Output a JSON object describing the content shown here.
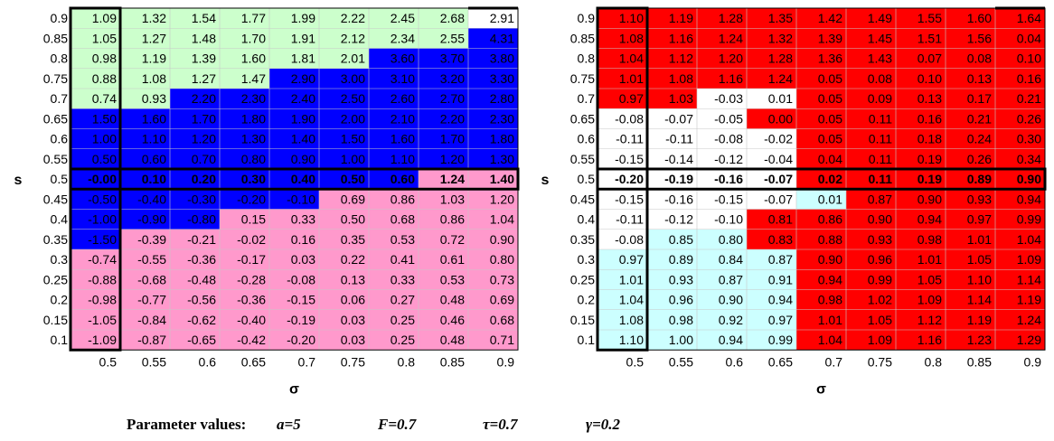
{
  "chart_data": [
    {
      "type": "heatmap",
      "xlabel": "σ",
      "ylabel": "s",
      "x_ticks": [
        "0.5",
        "0.55",
        "0.6",
        "0.65",
        "0.7",
        "0.75",
        "0.8",
        "0.85",
        "0.9"
      ],
      "y_ticks": [
        "0.9",
        "0.85",
        "0.8",
        "0.75",
        "0.7",
        "0.65",
        "0.6",
        "0.55",
        "0.5",
        "0.45",
        "0.4",
        "0.35",
        "0.3",
        "0.25",
        "0.2",
        "0.15",
        "0.1"
      ],
      "palette": {
        "g": "#ccffcc",
        "b": "#0000ff",
        "p": "#ff99cc"
      },
      "text_colors": {
        "g": "#000000",
        "b": "#000000",
        "p": "#000000"
      },
      "bold_row_index": 8,
      "values": [
        [
          "1.09",
          "1.32",
          "1.54",
          "1.77",
          "1.99",
          "2.22",
          "2.45",
          "2.68",
          "2.91"
        ],
        [
          "1.05",
          "1.27",
          "1.48",
          "1.70",
          "1.91",
          "2.12",
          "2.34",
          "2.55",
          "4.31"
        ],
        [
          "0.98",
          "1.19",
          "1.39",
          "1.60",
          "1.81",
          "2.01",
          "3.60",
          "3.70",
          "3.80"
        ],
        [
          "0.88",
          "1.08",
          "1.27",
          "1.47",
          "2.90",
          "3.00",
          "3.10",
          "3.20",
          "3.30"
        ],
        [
          "0.74",
          "0.93",
          "2.20",
          "2.30",
          "2.40",
          "2.50",
          "2.60",
          "2.70",
          "2.80"
        ],
        [
          "1.50",
          "1.60",
          "1.70",
          "1.80",
          "1.90",
          "2.00",
          "2.10",
          "2.20",
          "2.30"
        ],
        [
          "1.00",
          "1.10",
          "1.20",
          "1.30",
          "1.40",
          "1.50",
          "1.60",
          "1.70",
          "1.80"
        ],
        [
          "0.50",
          "0.60",
          "0.70",
          "0.80",
          "0.90",
          "1.00",
          "1.10",
          "1.20",
          "1.30"
        ],
        [
          "-0.00",
          "0.10",
          "0.20",
          "0.30",
          "0.40",
          "0.50",
          "0.60",
          "1.24",
          "1.40"
        ],
        [
          "-0.50",
          "-0.40",
          "-0.30",
          "-0.20",
          "-0.10",
          "0.69",
          "0.86",
          "1.03",
          "1.20"
        ],
        [
          "-1.00",
          "-0.90",
          "-0.80",
          "0.15",
          "0.33",
          "0.50",
          "0.68",
          "0.86",
          "1.04"
        ],
        [
          "-1.50",
          "-0.39",
          "-0.21",
          "-0.02",
          "0.16",
          "0.35",
          "0.53",
          "0.72",
          "0.90"
        ],
        [
          "-0.74",
          "-0.55",
          "-0.36",
          "-0.17",
          "0.03",
          "0.22",
          "0.41",
          "0.61",
          "0.80"
        ],
        [
          "-0.88",
          "-0.68",
          "-0.48",
          "-0.28",
          "-0.08",
          "0.13",
          "0.33",
          "0.53",
          "0.73"
        ],
        [
          "-0.98",
          "-0.77",
          "-0.56",
          "-0.36",
          "-0.15",
          "0.06",
          "0.27",
          "0.48",
          "0.69"
        ],
        [
          "-1.05",
          "-0.84",
          "-0.62",
          "-0.40",
          "-0.19",
          "0.03",
          "0.25",
          "0.46",
          "0.68"
        ],
        [
          "-1.09",
          "-0.87",
          "-0.65",
          "-0.42",
          "-0.20",
          "0.03",
          "0.25",
          "0.48",
          "0.71"
        ]
      ],
      "colors": [
        "gggggggg.",
        "ggggggggb",
        "ggggggbbb",
        "ggggbbbbb",
        "ggbbbbbbb",
        "bbbbbbbbb",
        "bbbbbbbbb",
        "bbbbbbbbb",
        "bbbbbbbpp",
        "bbbbbpppp",
        "bbbpppppp",
        "bpppppppp",
        "ppppppppp",
        "ppppppppp",
        "ppppppppp",
        "ppppppppp",
        "ppppppppp"
      ]
    },
    {
      "type": "heatmap",
      "xlabel": "σ",
      "ylabel": "s",
      "x_ticks": [
        "0.5",
        "0.55",
        "0.6",
        "0.65",
        "0.7",
        "0.75",
        "0.8",
        "0.85",
        "0.9"
      ],
      "y_ticks": [
        "0.9",
        "0.85",
        "0.8",
        "0.75",
        "0.7",
        "0.65",
        "0.6",
        "0.55",
        "0.5",
        "0.45",
        "0.4",
        "0.35",
        "0.3",
        "0.25",
        "0.2",
        "0.15",
        "0.1"
      ],
      "palette": {
        "r": "#ff0000",
        "w": "#ffffff",
        "c": "#ccffff"
      },
      "text_colors": {
        "r": "#000000",
        "w": "#000000",
        "c": "#000000"
      },
      "bold_row_index": 8,
      "values": [
        [
          "1.10",
          "1.19",
          "1.28",
          "1.35",
          "1.42",
          "1.49",
          "1.55",
          "1.60",
          "1.64"
        ],
        [
          "1.08",
          "1.16",
          "1.24",
          "1.32",
          "1.39",
          "1.45",
          "1.51",
          "1.56",
          "0.04"
        ],
        [
          "1.04",
          "1.12",
          "1.20",
          "1.28",
          "1.36",
          "1.43",
          "0.07",
          "0.08",
          "0.10"
        ],
        [
          "1.01",
          "1.08",
          "1.16",
          "1.24",
          "0.05",
          "0.08",
          "0.10",
          "0.13",
          "0.16"
        ],
        [
          "0.97",
          "1.03",
          "-0.03",
          "0.01",
          "0.05",
          "0.09",
          "0.13",
          "0.17",
          "0.21"
        ],
        [
          "-0.08",
          "-0.07",
          "-0.05",
          "0.00",
          "0.05",
          "0.11",
          "0.16",
          "0.21",
          "0.26"
        ],
        [
          "-0.11",
          "-0.11",
          "-0.08",
          "-0.02",
          "0.05",
          "0.11",
          "0.18",
          "0.24",
          "0.30"
        ],
        [
          "-0.15",
          "-0.14",
          "-0.12",
          "-0.04",
          "0.04",
          "0.11",
          "0.19",
          "0.26",
          "0.34"
        ],
        [
          "-0.20",
          "-0.19",
          "-0.16",
          "-0.07",
          "0.02",
          "0.11",
          "0.19",
          "0.89",
          "0.90"
        ],
        [
          "-0.15",
          "-0.16",
          "-0.15",
          "-0.07",
          "0.01",
          "0.87",
          "0.90",
          "0.93",
          "0.94"
        ],
        [
          "-0.11",
          "-0.12",
          "-0.10",
          "0.81",
          "0.86",
          "0.90",
          "0.94",
          "0.97",
          "0.99"
        ],
        [
          "-0.08",
          "0.85",
          "0.80",
          "0.83",
          "0.88",
          "0.93",
          "0.98",
          "1.01",
          "1.04"
        ],
        [
          "0.97",
          "0.89",
          "0.84",
          "0.87",
          "0.90",
          "0.96",
          "1.01",
          "1.05",
          "1.09"
        ],
        [
          "1.01",
          "0.93",
          "0.87",
          "0.91",
          "0.94",
          "0.99",
          "1.05",
          "1.10",
          "1.14"
        ],
        [
          "1.04",
          "0.96",
          "0.90",
          "0.94",
          "0.98",
          "1.02",
          "1.09",
          "1.14",
          "1.19"
        ],
        [
          "1.08",
          "0.98",
          "0.92",
          "0.97",
          "1.01",
          "1.05",
          "1.12",
          "1.19",
          "1.24"
        ],
        [
          "1.10",
          "1.00",
          "0.94",
          "0.99",
          "1.04",
          "1.09",
          "1.16",
          "1.23",
          "1.29"
        ]
      ],
      "colors": [
        "rrrrrrrrr",
        "rrrrrrrrr",
        "rrrrrrrrr",
        "rrrrrrrrr",
        "rrwwrrrrr",
        "wwwrrrrrr",
        "wwwwrrrrr",
        "wwwwrrrrr",
        "wwwwrrrrr",
        "wwwwcrrrr",
        "wwwrrrrrr",
        "wccrrrrrr",
        "ccccrrrrr",
        "ccccrrrrr",
        "ccccrrrrr",
        "ccccrrrrr",
        "ccccrrrrr"
      ]
    }
  ],
  "parameters": {
    "label": "Parameter values:",
    "a": "a=5",
    "F": "F=0.7",
    "tau": "τ=0.7",
    "gamma": "γ=0.2"
  }
}
